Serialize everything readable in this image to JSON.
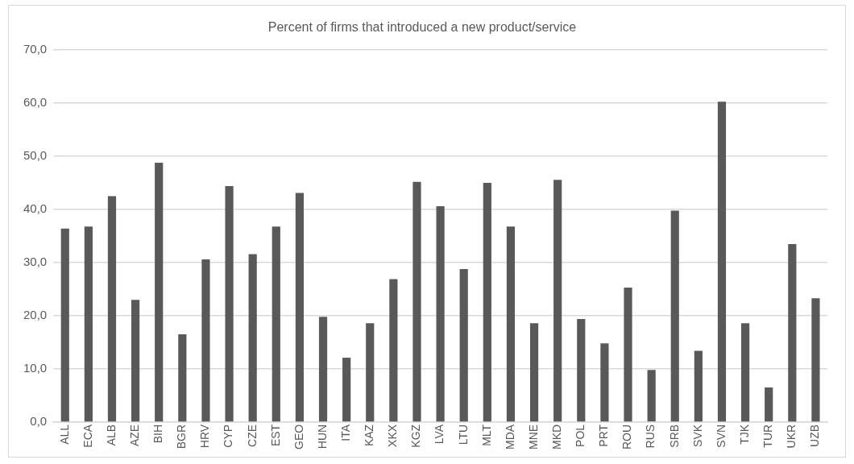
{
  "chart_data": {
    "type": "bar",
    "title": "Percent of firms that introduced a new product/service",
    "categories": [
      "ALL",
      "ECA",
      "ALB",
      "AZE",
      "BIH",
      "BGR",
      "HRV",
      "CYP",
      "CZE",
      "EST",
      "GEO",
      "HUN",
      "ITA",
      "KAZ",
      "XKX",
      "KGZ",
      "LVA",
      "LTU",
      "MLT",
      "MDA",
      "MNE",
      "MKD",
      "POL",
      "PRT",
      "ROU",
      "RUS",
      "SRB",
      "SVK",
      "SVN",
      "TJK",
      "TUR",
      "UKR",
      "UZB"
    ],
    "values": [
      36.4,
      36.8,
      42.5,
      23.0,
      48.8,
      16.5,
      30.6,
      44.4,
      31.6,
      36.8,
      43.1,
      19.8,
      12.1,
      18.6,
      26.9,
      45.2,
      40.6,
      28.8,
      45.0,
      36.8,
      18.6,
      45.6,
      19.4,
      14.8,
      25.3,
      9.8,
      39.8,
      13.4,
      60.3,
      18.6,
      6.5,
      33.5,
      23.3
    ],
    "color": "#595959",
    "ylim": [
      0,
      70
    ],
    "yticks": [
      {
        "value": 0,
        "label": "0,0"
      },
      {
        "value": 10,
        "label": "10,0"
      },
      {
        "value": 20,
        "label": "20,0"
      },
      {
        "value": 30,
        "label": "30,0"
      },
      {
        "value": 40,
        "label": "40,0"
      },
      {
        "value": 50,
        "label": "50,0"
      },
      {
        "value": 60,
        "label": "60,0"
      },
      {
        "value": 70,
        "label": "70,0"
      }
    ],
    "grid": "y"
  }
}
